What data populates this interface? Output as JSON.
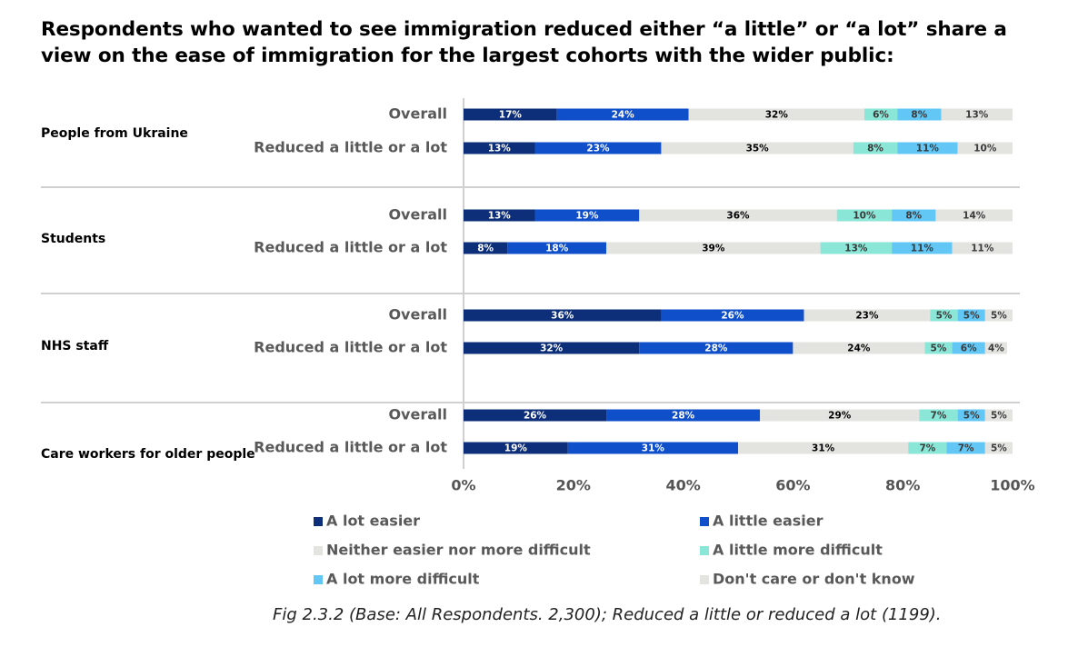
{
  "title": "Respondents who wanted to see immigration reduced either “a little” or “a lot” share a view on the ease of immigration for the largest cohorts with the wider public:",
  "caption": {
    "lead": "Fig 2.3.2",
    "rest": " (Base: All Respondents. 2,300); Reduced a little or reduced a lot (1199)."
  },
  "colors": {
    "a_lot_easier": "#0d2f7a",
    "a_little_easier": "#0f4fc9",
    "neither": "#e3e3e0",
    "a_little_more_difficult": "#8ae6d6",
    "a_lot_more_difficult": "#63c7f5",
    "dont_know": "#e3e3e0",
    "axis": "#d0d0d0"
  },
  "chart_data": {
    "type": "bar",
    "orientation": "horizontal",
    "stacked": true,
    "xlim": [
      0,
      100
    ],
    "x_ticks": [
      "0%",
      "20%",
      "40%",
      "60%",
      "80%",
      "100%"
    ],
    "legend_placement": "bottom",
    "series": [
      {
        "key": "a_lot_easier",
        "name": "A lot easier",
        "label_color": "#ffffff"
      },
      {
        "key": "a_little_easier",
        "name": "A little easier",
        "label_color": "#ffffff"
      },
      {
        "key": "neither",
        "name": "Neither easier nor more difficult",
        "label_color": "#000000"
      },
      {
        "key": "a_little_more_difficult",
        "name": "A little more difficult",
        "label_color": "#3a3a3a"
      },
      {
        "key": "a_lot_more_difficult",
        "name": "A lot more difficult",
        "label_color": "#3a3a3a"
      },
      {
        "key": "dont_know",
        "name": "Don't care or don't know",
        "label_color": "#3a3a3a"
      }
    ],
    "groups": [
      {
        "cohort": "People from Ukraine",
        "rows": [
          {
            "label": "Overall",
            "values": [
              17,
              24,
              32,
              6,
              8,
              13
            ]
          },
          {
            "label": "Reduced a little or a lot",
            "values": [
              13,
              23,
              35,
              8,
              11,
              10
            ]
          }
        ]
      },
      {
        "cohort": "Students",
        "rows": [
          {
            "label": "Overall",
            "values": [
              13,
              19,
              36,
              10,
              8,
              14
            ]
          },
          {
            "label": "Reduced a little or a lot",
            "values": [
              8,
              18,
              39,
              13,
              11,
              11
            ]
          }
        ]
      },
      {
        "cohort": "NHS staff",
        "rows": [
          {
            "label": "Overall",
            "values": [
              36,
              26,
              23,
              5,
              5,
              5
            ]
          },
          {
            "label": "Reduced a little or a lot",
            "values": [
              32,
              28,
              24,
              5,
              6,
              4
            ]
          }
        ]
      },
      {
        "cohort": "Care workers for older people",
        "rows": [
          {
            "label": "Overall",
            "values": [
              26,
              28,
              29,
              7,
              5,
              5
            ]
          },
          {
            "label": "Reduced a little or a lot",
            "values": [
              19,
              31,
              31,
              7,
              7,
              5
            ]
          }
        ]
      }
    ]
  }
}
